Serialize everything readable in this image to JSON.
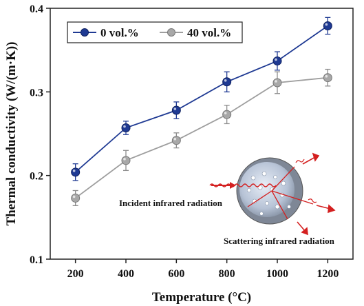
{
  "chart_data": {
    "type": "line",
    "xlabel": "Temperature (°C)",
    "ylabel": "Thermal conductivity (W/(m·K))",
    "x": [
      200,
      400,
      600,
      800,
      1000,
      1200
    ],
    "xlim": [
      100,
      1300
    ],
    "ylim": [
      0.1,
      0.4
    ],
    "xticks": [
      200,
      400,
      600,
      800,
      1000,
      1200
    ],
    "yticks": [
      0.1,
      0.2,
      0.3,
      0.4
    ],
    "grid": false,
    "legend_position": "top-left",
    "series": [
      {
        "name": "0 vol.%",
        "color": "#1f3a93",
        "values": [
          0.204,
          0.257,
          0.278,
          0.312,
          0.337,
          0.379
        ],
        "errors": [
          0.01,
          0.008,
          0.01,
          0.012,
          0.011,
          0.01
        ]
      },
      {
        "name": "40 vol.%",
        "color": "#9e9e9e",
        "values": [
          0.173,
          0.218,
          0.242,
          0.273,
          0.311,
          0.317
        ],
        "errors": [
          0.009,
          0.012,
          0.009,
          0.011,
          0.013,
          0.01
        ]
      }
    ],
    "annotations": {
      "incident": "Incident infrared radiation",
      "scattering": "Scattering infrared radiation"
    }
  }
}
